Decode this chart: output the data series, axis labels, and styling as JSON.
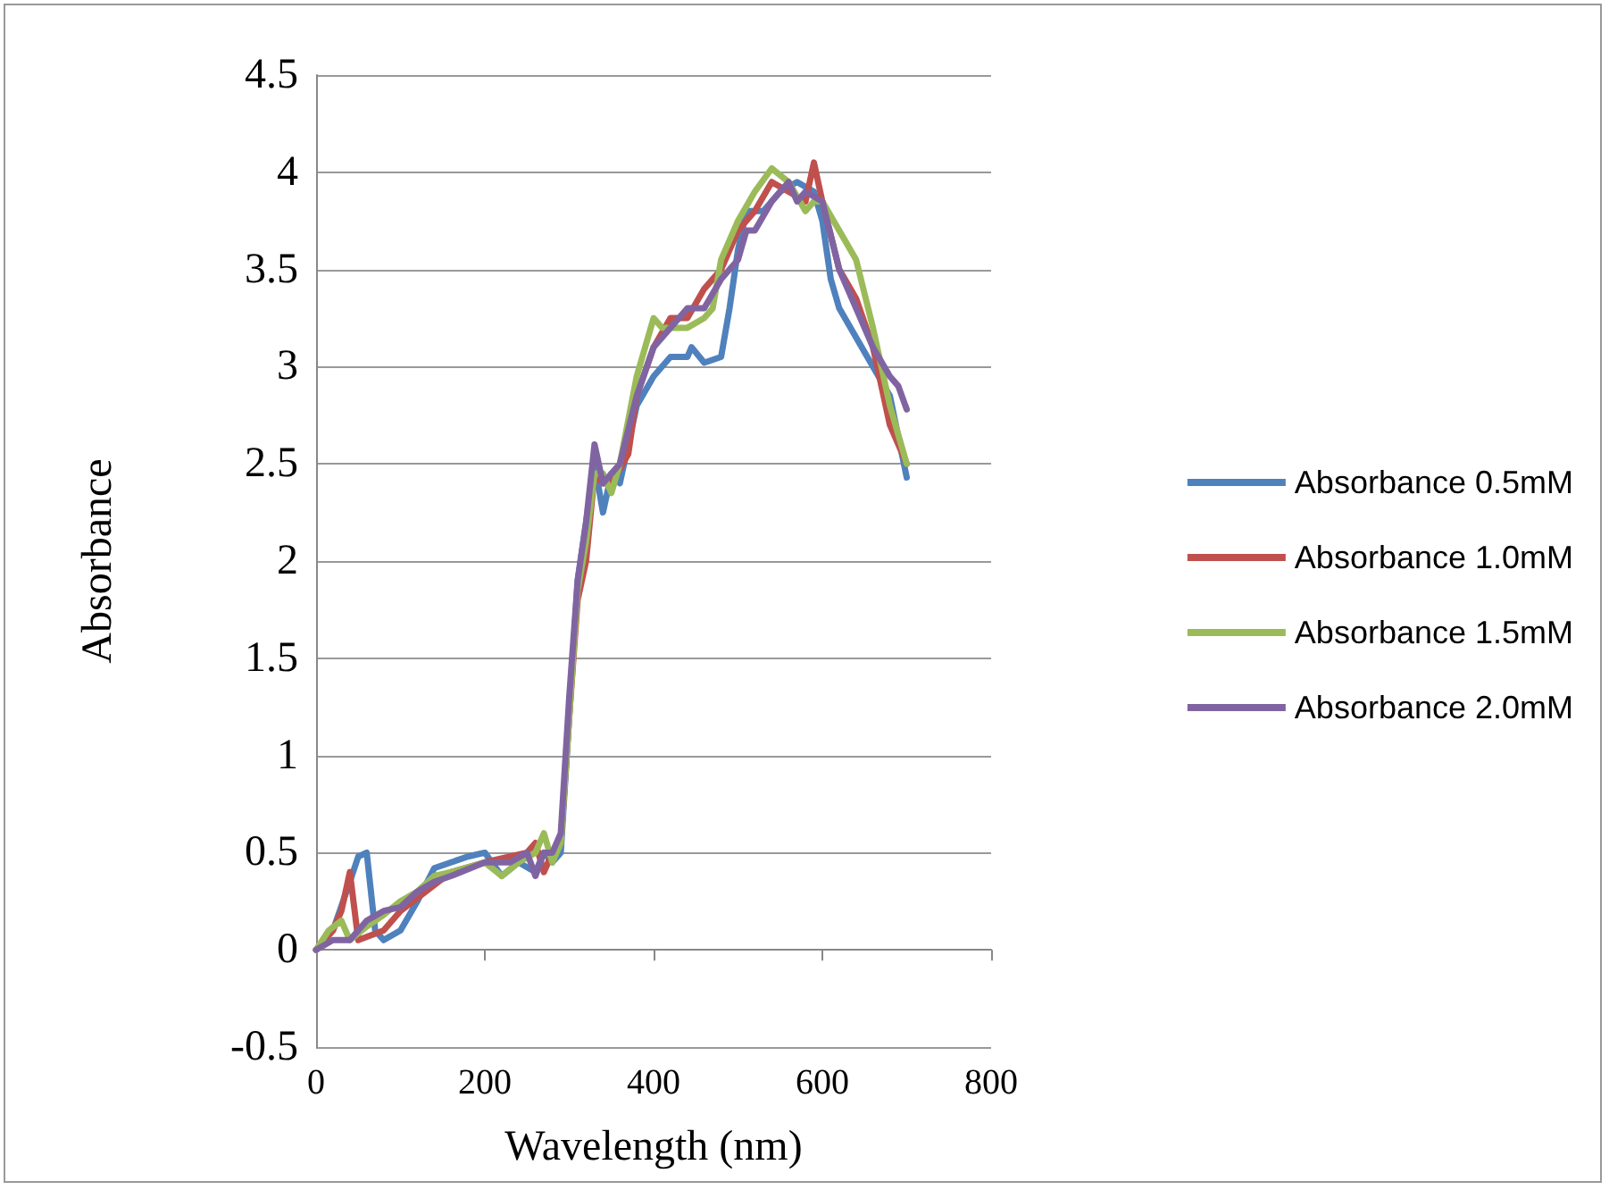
{
  "chart_data": {
    "type": "line",
    "xlabel": "Wavelength (nm)",
    "ylabel": "Absorbance",
    "xlim": [
      0,
      800
    ],
    "xticks": [
      0,
      200,
      400,
      600,
      800
    ],
    "ylim": [
      -0.5,
      4.5
    ],
    "yticks": [
      -0.5,
      0,
      0.5,
      1,
      1.5,
      2,
      2.5,
      3,
      3.5,
      4,
      4.5
    ],
    "grid": "y",
    "legend": "right",
    "marker": "none",
    "line_style": "solid",
    "series": [
      {
        "name": "Absorbance 0.5mM",
        "color": "#4f81bd",
        "x": [
          0,
          20,
          40,
          50,
          60,
          70,
          80,
          100,
          120,
          140,
          160,
          180,
          200,
          220,
          240,
          260,
          270,
          280,
          290,
          300,
          310,
          320,
          330,
          340,
          350,
          360,
          370,
          380,
          400,
          420,
          440,
          445,
          460,
          480,
          490,
          500,
          510,
          530,
          550,
          570,
          590,
          600,
          610,
          620,
          640,
          660,
          680,
          700
        ],
        "values": [
          0,
          0.1,
          0.35,
          0.48,
          0.5,
          0.1,
          0.05,
          0.1,
          0.25,
          0.42,
          0.45,
          0.48,
          0.5,
          0.38,
          0.45,
          0.4,
          0.5,
          0.45,
          0.5,
          1.2,
          1.9,
          2.2,
          2.5,
          2.25,
          2.45,
          2.4,
          2.6,
          2.8,
          2.95,
          3.05,
          3.05,
          3.1,
          3.02,
          3.05,
          3.3,
          3.6,
          3.8,
          3.8,
          3.9,
          3.95,
          3.9,
          3.75,
          3.45,
          3.3,
          3.15,
          3,
          2.85,
          2.43
        ]
      },
      {
        "name": "Absorbance 1.0mM",
        "color": "#c0504d",
        "x": [
          0,
          20,
          30,
          40,
          50,
          80,
          100,
          130,
          160,
          200,
          230,
          250,
          260,
          270,
          280,
          290,
          300,
          310,
          320,
          330,
          340,
          350,
          370,
          380,
          400,
          420,
          440,
          460,
          480,
          500,
          520,
          540,
          560,
          580,
          590,
          600,
          620,
          640,
          660,
          680,
          700
        ],
        "values": [
          0,
          0.1,
          0.2,
          0.4,
          0.05,
          0.1,
          0.2,
          0.3,
          0.4,
          0.45,
          0.48,
          0.5,
          0.55,
          0.4,
          0.5,
          0.55,
          1.2,
          1.8,
          2,
          2.45,
          2.4,
          2.4,
          2.55,
          2.85,
          3.1,
          3.25,
          3.25,
          3.4,
          3.5,
          3.7,
          3.8,
          3.95,
          3.9,
          3.85,
          4.05,
          3.85,
          3.5,
          3.35,
          3.1,
          2.7,
          2.5
        ]
      },
      {
        "name": "Absorbance 1.5mM",
        "color": "#9bbb59",
        "x": [
          0,
          15,
          30,
          40,
          60,
          80,
          100,
          120,
          140,
          160,
          200,
          220,
          240,
          260,
          270,
          280,
          290,
          300,
          310,
          320,
          330,
          340,
          350,
          360,
          380,
          400,
          410,
          440,
          460,
          470,
          480,
          500,
          520,
          540,
          560,
          580,
          590,
          600,
          620,
          640,
          660,
          680,
          700
        ],
        "values": [
          0,
          0.1,
          0.15,
          0.05,
          0.12,
          0.18,
          0.25,
          0.3,
          0.38,
          0.4,
          0.45,
          0.38,
          0.45,
          0.5,
          0.6,
          0.45,
          0.55,
          1.2,
          1.85,
          2.1,
          2.45,
          2.45,
          2.35,
          2.5,
          2.95,
          3.25,
          3.2,
          3.2,
          3.25,
          3.3,
          3.55,
          3.75,
          3.9,
          4.02,
          3.95,
          3.8,
          3.85,
          3.85,
          3.7,
          3.55,
          3.2,
          2.8,
          2.5
        ]
      },
      {
        "name": "Absorbance 2.0mM",
        "color": "#8064a2",
        "x": [
          0,
          20,
          40,
          60,
          80,
          100,
          120,
          140,
          160,
          200,
          230,
          250,
          260,
          270,
          280,
          290,
          300,
          310,
          320,
          330,
          340,
          350,
          360,
          380,
          400,
          420,
          440,
          460,
          480,
          500,
          510,
          520,
          540,
          560,
          570,
          580,
          600,
          620,
          640,
          660,
          680,
          690,
          700
        ],
        "values": [
          0,
          0.05,
          0.05,
          0.15,
          0.2,
          0.22,
          0.3,
          0.35,
          0.38,
          0.45,
          0.45,
          0.5,
          0.38,
          0.5,
          0.5,
          0.6,
          1.3,
          1.9,
          2.2,
          2.6,
          2.4,
          2.45,
          2.5,
          2.85,
          3.1,
          3.2,
          3.3,
          3.3,
          3.45,
          3.55,
          3.7,
          3.7,
          3.85,
          3.95,
          3.85,
          3.9,
          3.85,
          3.5,
          3.3,
          3.1,
          2.95,
          2.9,
          2.78
        ]
      }
    ]
  }
}
